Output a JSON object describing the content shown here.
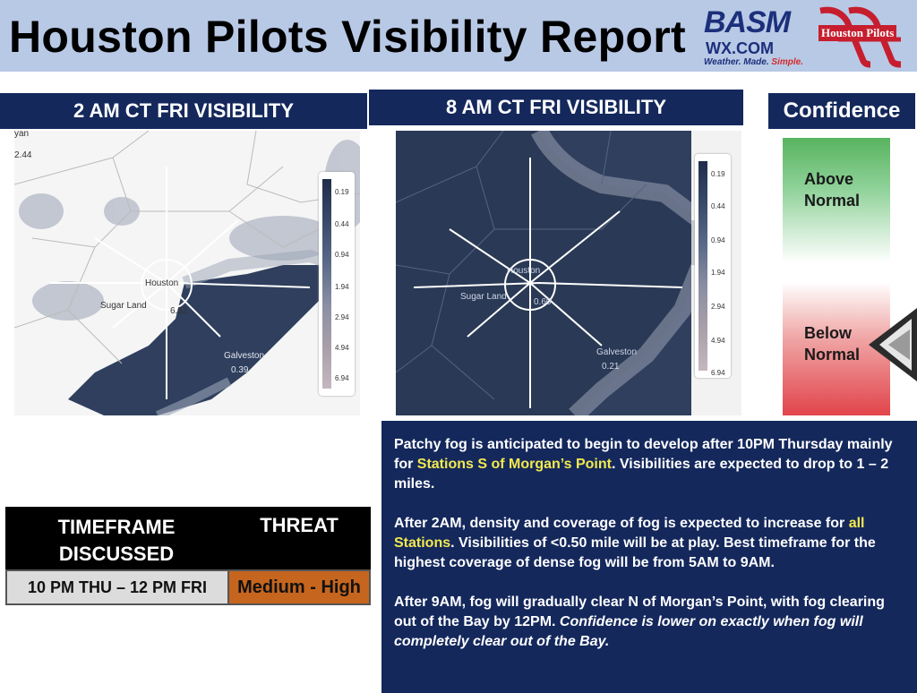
{
  "header": {
    "title": "Houston Pilots Visibility Report",
    "basm_logo": {
      "line1": "BASM",
      "line2": "WX.COM",
      "tagline_a": "Weather. Made. ",
      "tagline_b": "Simple."
    },
    "pilots_logo_text": "Houston Pilots"
  },
  "panels": {
    "left_title": "2 AM CT FRI VISIBILITY",
    "right_title": "8 AM CT FRI VISIBILITY",
    "confidence_title": "Confidence"
  },
  "legend_ticks": [
    "0.19",
    "0.44",
    "0.94",
    "1.94",
    "2.94",
    "4.94",
    "6.94"
  ],
  "map_left_labels": {
    "houston": "Houston",
    "sugar_land": "Sugar Land",
    "galveston": "Galveston",
    "val_a": "6.52",
    "val_b": "0.39",
    "corner_top": "yan",
    "corner_val": "2.44"
  },
  "map_right_labels": {
    "houston": "Houston",
    "sugar_land": "Sugar Land",
    "galveston": "Galveston",
    "val_a": "0.60",
    "val_b": "0.21"
  },
  "confidence": {
    "above": [
      "Above",
      "Normal"
    ],
    "below": [
      "Below",
      "Normal"
    ],
    "indicator": "arrow-left-icon",
    "level": "below-normal"
  },
  "timeframe_table": {
    "headers": [
      "TIMEFRAME DISCUSSED",
      "THREAT"
    ],
    "row": {
      "timeframe": "10 PM THU – 12 PM FRI",
      "threat": "Medium - High"
    }
  },
  "discussion": {
    "p1_a": "Patchy fog is anticipated to begin to develop after 10PM Thursday mainly for ",
    "p1_hl": "Stations S of Morgan’s Point",
    "p1_b": ". Visibilities are expected to drop to 1 – 2 miles.",
    "p2_a": "After 2AM, density and coverage of fog is expected to increase for ",
    "p2_hl": "all Stations",
    "p2_b": ". Visibilities of <0.50 mile will be at play. Best timeframe for the highest coverage of dense fog will be from 5AM to 9AM.",
    "p3_a": "After 9AM, fog will gradually clear N of Morgan’s Point, with fog clearing out of the Bay by 12PM. ",
    "p3_em": "Confidence is lower on exactly when fog will completely clear out of the Bay."
  },
  "colors": {
    "header_bg": "#b8c9e6",
    "navy": "#14285c",
    "highlight": "#f2e94e",
    "threat_fill": "#c6651e",
    "conf_top": "#58b45f",
    "conf_bottom": "#e1444a"
  }
}
